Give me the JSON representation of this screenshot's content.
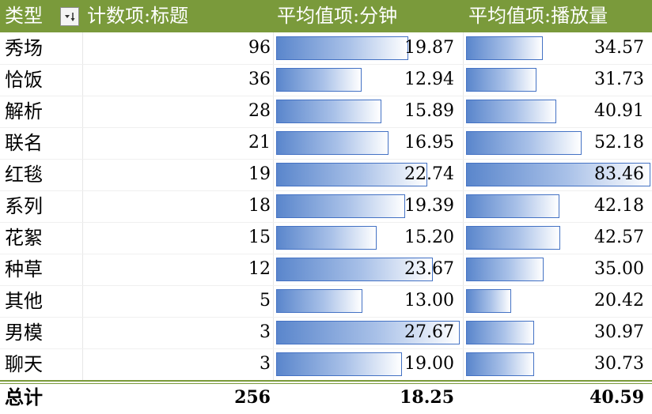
{
  "header": {
    "col_type": "类型",
    "col_count": "计数项:标题",
    "col_minutes": "平均值项:分钟",
    "col_plays": "平均值项:播放量"
  },
  "rows": [
    {
      "type": "秀场",
      "count": "96",
      "minutes": "19.87",
      "plays": "34.57"
    },
    {
      "type": "恰饭",
      "count": "36",
      "minutes": "12.94",
      "plays": "31.73"
    },
    {
      "type": "解析",
      "count": "28",
      "minutes": "15.89",
      "plays": "40.91"
    },
    {
      "type": "联名",
      "count": "21",
      "minutes": "16.95",
      "plays": "52.18"
    },
    {
      "type": "红毯",
      "count": "19",
      "minutes": "22.74",
      "plays": "83.46"
    },
    {
      "type": "系列",
      "count": "18",
      "minutes": "19.39",
      "plays": "42.18"
    },
    {
      "type": "花絮",
      "count": "15",
      "minutes": "15.20",
      "plays": "42.57"
    },
    {
      "type": "种草",
      "count": "12",
      "minutes": "23.67",
      "plays": "35.00"
    },
    {
      "type": "其他",
      "count": "5",
      "minutes": "13.00",
      "plays": "20.42"
    },
    {
      "type": "男模",
      "count": "3",
      "minutes": "27.67",
      "plays": "30.97"
    },
    {
      "type": "聊天",
      "count": "3",
      "minutes": "19.00",
      "plays": "30.73"
    }
  ],
  "total": {
    "label": "总计",
    "count": "256",
    "minutes": "18.25",
    "plays": "40.59"
  },
  "colors": {
    "header_bg": "#7a9a3b",
    "bar_border": "#4472c4",
    "bar_fill": "#5a86cc"
  }
}
